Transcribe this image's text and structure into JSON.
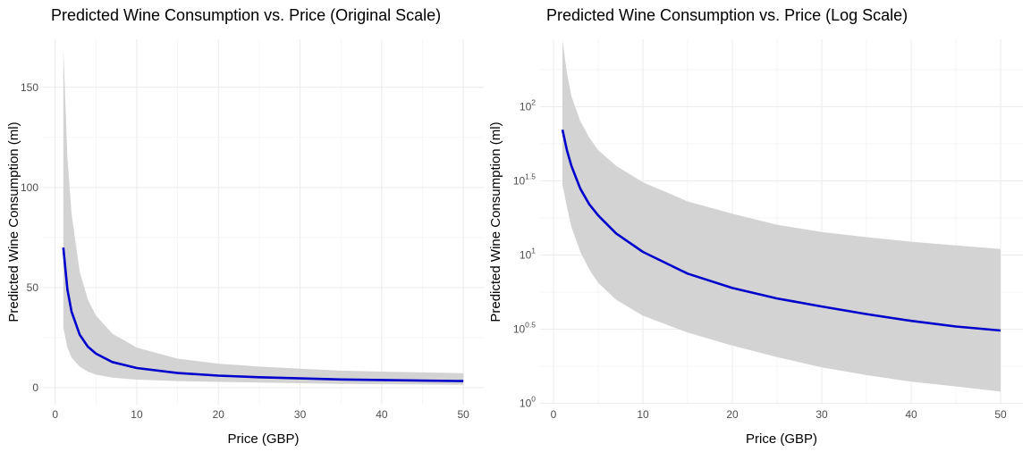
{
  "colors": {
    "line": "#0000cc",
    "ribbon": "#d3d3d3",
    "grid_major": "#ebebeb",
    "grid_minor": "#f3f3f3",
    "tick_text": "#4d4d4d"
  },
  "chart_data": [
    {
      "type": "line",
      "title": "Predicted Wine Consumption vs. Price (Original Scale)",
      "xlabel": "Price (GBP)",
      "ylabel": "Predicted Wine Consumption (ml)",
      "xscale": "linear",
      "yscale": "linear",
      "xlim": [
        -1.5,
        52.5
      ],
      "ylim": [
        -8.5,
        174
      ],
      "xticks": [
        0,
        10,
        20,
        30,
        40,
        50
      ],
      "xtick_labels": [
        "0",
        "10",
        "20",
        "30",
        "40",
        "50"
      ],
      "yticks": [
        0,
        50,
        100,
        150
      ],
      "ytick_labels": [
        "0",
        "50",
        "100",
        "150"
      ],
      "grid": true,
      "legend": "none",
      "series": [
        {
          "kind": "ribbon",
          "x": [
            1,
            1.5,
            2,
            3,
            4,
            5,
            7,
            10,
            15,
            20,
            25,
            30,
            35,
            40,
            45,
            50
          ],
          "lower": [
            30,
            20,
            15,
            10.5,
            8,
            6.5,
            5,
            4,
            3.3,
            2.9,
            2.5,
            2.2,
            1.9,
            1.7,
            1.6,
            1.4
          ],
          "upper": [
            170,
            115,
            87,
            58,
            44,
            36,
            27,
            20,
            14.5,
            12,
            10.5,
            9.5,
            8.5,
            8,
            7.6,
            7.2
          ]
        },
        {
          "kind": "line",
          "x": [
            1,
            1.5,
            2,
            3,
            4,
            5,
            7,
            10,
            15,
            20,
            25,
            30,
            35,
            40,
            45,
            50
          ],
          "y": [
            70,
            49,
            38,
            26.5,
            20.5,
            17,
            12.8,
            9.8,
            7.3,
            6,
            5.2,
            4.6,
            4.1,
            3.8,
            3.5,
            3.3
          ]
        }
      ]
    },
    {
      "type": "line",
      "title": "Predicted Wine Consumption vs. Price (Log Scale)",
      "xlabel": "Price (GBP)",
      "ylabel": "Predicted Wine Consumption (ml)",
      "xscale": "linear",
      "yscale": "log10",
      "xlim": [
        -1.5,
        52.5
      ],
      "ylim": [
        0.98,
        285
      ],
      "xticks": [
        0,
        10,
        20,
        30,
        40,
        50
      ],
      "xtick_labels": [
        "0",
        "10",
        "20",
        "30",
        "40",
        "50"
      ],
      "yticks": [
        1,
        3.1623,
        10,
        31.623,
        100
      ],
      "ytick_labels": [
        {
          "base": "10",
          "exp": "0"
        },
        {
          "base": "10",
          "exp": "0.5"
        },
        {
          "base": "10",
          "exp": "1"
        },
        {
          "base": "10",
          "exp": "1.5"
        },
        {
          "base": "10",
          "exp": "2"
        }
      ],
      "grid": true,
      "legend": "none",
      "series": [
        {
          "kind": "ribbon",
          "x": [
            1,
            1.5,
            2,
            3,
            4,
            5,
            7,
            10,
            15,
            20,
            25,
            30,
            35,
            40,
            45,
            50
          ],
          "lower": [
            30,
            21,
            15.5,
            10.5,
            8,
            6.5,
            5,
            3.9,
            3.0,
            2.45,
            2.05,
            1.75,
            1.55,
            1.4,
            1.3,
            1.2
          ],
          "upper": [
            280,
            170,
            118,
            80,
            62,
            51,
            40,
            31,
            23,
            19,
            16,
            14.3,
            13.2,
            12.3,
            11.6,
            11
          ]
        },
        {
          "kind": "line",
          "x": [
            1,
            1.5,
            2,
            3,
            4,
            5,
            7,
            10,
            15,
            20,
            25,
            30,
            35,
            40,
            45,
            50
          ],
          "y": [
            70,
            51,
            40,
            28,
            22,
            18.5,
            14,
            10.5,
            7.5,
            6.0,
            5.1,
            4.5,
            4.0,
            3.6,
            3.3,
            3.1
          ]
        }
      ]
    }
  ]
}
